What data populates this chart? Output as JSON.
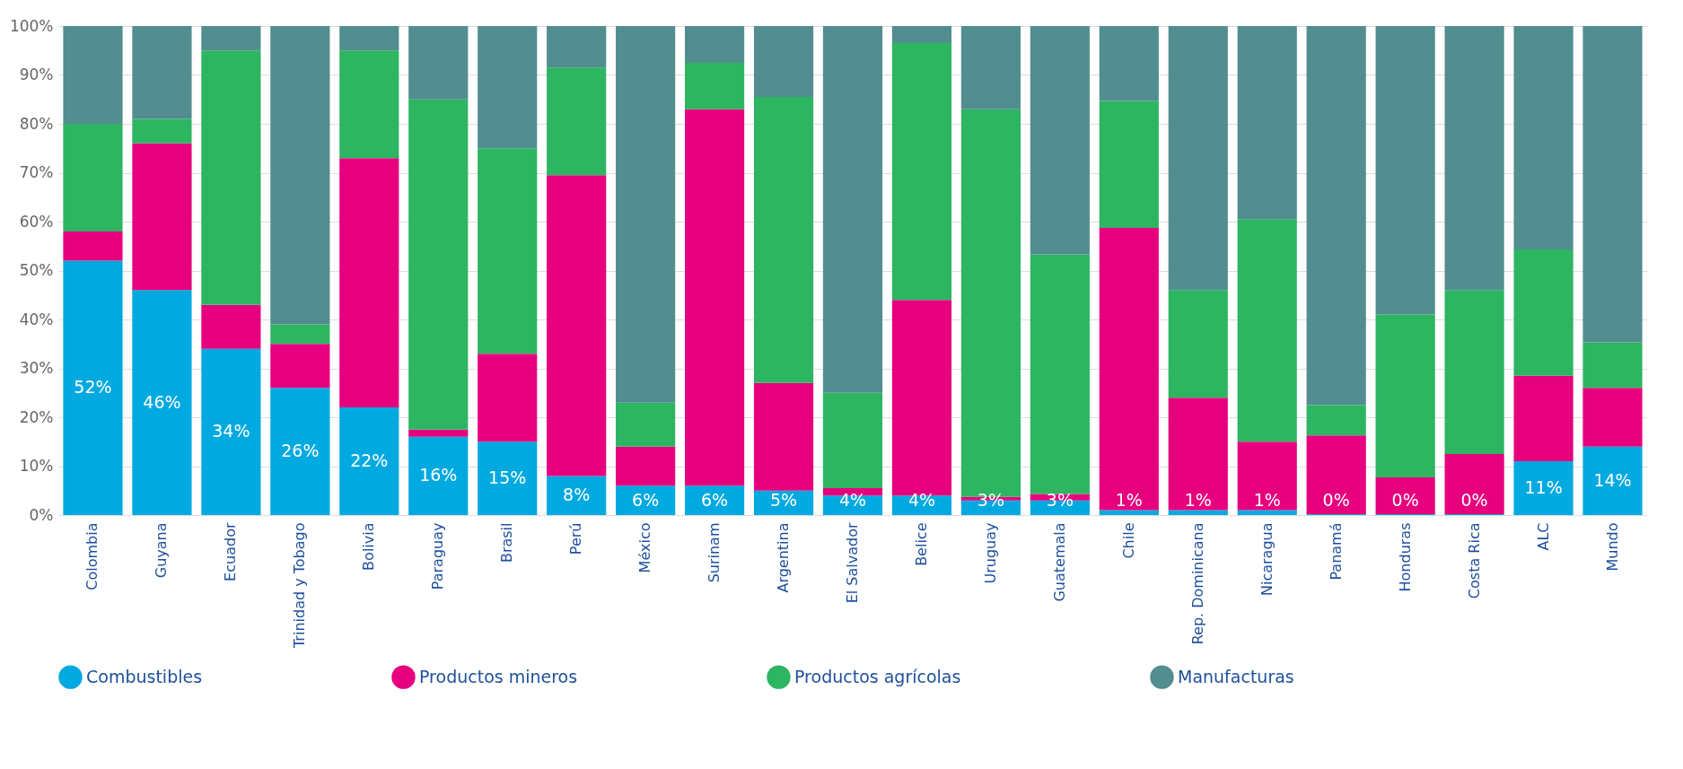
{
  "chart_data": {
    "type": "bar",
    "stacked": true,
    "legend": "bottom",
    "grid": "y",
    "categories": [
      "Colombia",
      "Guyana",
      "Ecuador",
      "Trinidad  y Tobago",
      "Bolivia",
      "Paraguay",
      "Brasil",
      "Perú",
      "México",
      "Surinam",
      "Argentina",
      "El Salvador",
      "Belice",
      "Uruguay",
      "Guatemala",
      "Chile",
      "Rep. Dominicana",
      "Nicaragua",
      "Panamá",
      "Honduras",
      "Costa Rica",
      "ALC",
      "Mundo"
    ],
    "ylim": [
      0,
      100
    ],
    "yticks": [
      {
        "value": 0,
        "label": "0%"
      },
      {
        "value": 10,
        "label": "10%"
      },
      {
        "value": 20,
        "label": "20%"
      },
      {
        "value": 30,
        "label": "30%"
      },
      {
        "value": 40,
        "label": "40%"
      },
      {
        "value": 50,
        "label": "50%"
      },
      {
        "value": 60,
        "label": "60%"
      },
      {
        "value": 70,
        "label": "70%"
      },
      {
        "value": 80,
        "label": "80%"
      },
      {
        "value": 90,
        "label": "90%"
      },
      {
        "value": 100,
        "label": "100%"
      }
    ],
    "series": [
      {
        "name": "Combustibles",
        "color": "#00a9e0",
        "values": [
          52,
          46,
          34,
          26,
          22,
          16,
          15,
          8,
          6,
          6,
          5,
          4,
          4,
          3,
          3,
          1,
          1,
          1,
          0.2,
          0.2,
          0.2,
          11,
          14
        ],
        "value_labels": [
          "52%",
          "46%",
          "34%",
          "26%",
          "22%",
          "16%",
          "15%",
          "8%",
          "6%",
          "6%",
          "5%",
          "4%",
          "4%",
          "3%",
          "3%",
          "1%",
          "1%",
          "1%",
          "0%",
          "0%",
          "0%",
          "11%",
          "14%"
        ]
      },
      {
        "name": "Productos mineros",
        "color": "#e6007e",
        "values": [
          6,
          30,
          9,
          9,
          51,
          1.5,
          18,
          61.5,
          8,
          77,
          22,
          1.5,
          40,
          0.7,
          1.3,
          57.7,
          23,
          14,
          16.1,
          7.5,
          12.3,
          17.5,
          12
        ]
      },
      {
        "name": "Productos agrícolas",
        "color": "#2db562",
        "values": [
          22,
          5,
          52,
          4,
          22,
          67.5,
          42,
          22,
          9,
          9.5,
          58.5,
          19.5,
          52.5,
          79.3,
          49,
          26,
          22,
          45.5,
          6.2,
          33.3,
          33.5,
          25.8,
          9.3
        ]
      },
      {
        "name": "Manufacturas",
        "color": "#528d8f",
        "values": [
          20,
          19,
          5,
          61,
          5,
          15,
          25,
          8.5,
          77,
          7.5,
          14.5,
          75,
          3.5,
          17,
          46.7,
          15.3,
          54,
          39.5,
          77.5,
          59,
          54,
          45.7,
          64.7
        ]
      }
    ]
  }
}
